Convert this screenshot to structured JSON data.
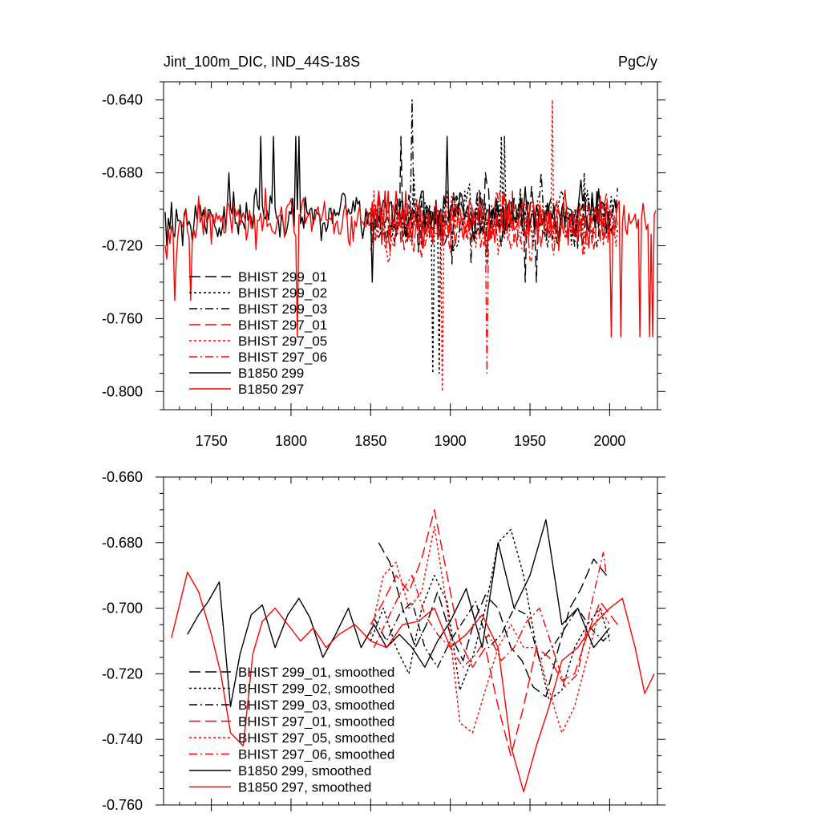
{
  "chart_data": [
    {
      "type": "line",
      "title": "Jint_100m_DIC, IND_44S-18S",
      "units": "PgC/y",
      "xlabel": "",
      "ylabel": "",
      "xlim": [
        1720,
        2030
      ],
      "ylim": [
        -0.81,
        -0.63
      ],
      "xticks": [
        1750,
        1800,
        1850,
        1900,
        1950,
        2000
      ],
      "xtick_labels": [
        "1750",
        "1800",
        "1850",
        "1900",
        "1950",
        "2000"
      ],
      "yticks": [
        -0.64,
        -0.68,
        -0.72,
        -0.76,
        -0.8
      ],
      "ytick_labels": [
        "-0.640",
        "-0.680",
        "-0.720",
        "-0.760",
        "-0.800"
      ],
      "legend_position": "bottom-left",
      "series": [
        {
          "name": "BHIST 299_01",
          "color": "#000000",
          "dash": "long-dash",
          "x_range": [
            1850,
            2005
          ],
          "mean": -0.705,
          "amp": 0.03,
          "seed": 11,
          "values_sample": [
            -0.69,
            -0.66,
            -0.7,
            -0.73,
            -0.68,
            -0.71,
            -0.74,
            -0.69,
            -0.72,
            -0.7
          ]
        },
        {
          "name": "BHIST 299_02",
          "color": "#000000",
          "dash": "dot",
          "x_range": [
            1850,
            2005
          ],
          "mean": -0.705,
          "amp": 0.03,
          "seed": 23,
          "values_sample": [
            -0.7,
            -0.68,
            -0.79,
            -0.69,
            -0.71,
            -0.66,
            -0.72,
            -0.7,
            -0.68,
            -0.71
          ]
        },
        {
          "name": "BHIST 299_03",
          "color": "#000000",
          "dash": "dash-dot",
          "x_range": [
            1850,
            2005
          ],
          "mean": -0.705,
          "amp": 0.03,
          "seed": 37,
          "values_sample": [
            -0.71,
            -0.64,
            -0.7,
            -0.69,
            -0.73,
            -0.7,
            -0.68,
            -0.71,
            -0.69,
            -0.7
          ]
        },
        {
          "name": "BHIST 297_01",
          "color": "#ff0000",
          "dash": "long-dash",
          "x_range": [
            1850,
            2005
          ],
          "mean": -0.708,
          "amp": 0.032,
          "seed": 41,
          "values_sample": [
            -0.7,
            -0.72,
            -0.68,
            -0.76,
            -0.7,
            -0.69,
            -0.78,
            -0.71,
            -0.69,
            -0.7
          ]
        },
        {
          "name": "BHIST 297_05",
          "color": "#ff0000",
          "dash": "dot",
          "x_range": [
            1850,
            2005
          ],
          "mean": -0.708,
          "amp": 0.032,
          "seed": 53,
          "values_sample": [
            -0.69,
            -0.71,
            -0.8,
            -0.7,
            -0.68,
            -0.72,
            -0.7,
            -0.64,
            -0.71,
            -0.7
          ]
        },
        {
          "name": "BHIST 297_06",
          "color": "#ff0000",
          "dash": "dash-dot",
          "x_range": [
            1850,
            2005
          ],
          "mean": -0.708,
          "amp": 0.032,
          "seed": 67,
          "values_sample": [
            -0.7,
            -0.69,
            -0.72,
            -0.7,
            -0.79,
            -0.69,
            -0.71,
            -0.7,
            -0.69,
            -0.7
          ]
        },
        {
          "name": "B1850 299",
          "color": "#000000",
          "dash": "solid",
          "x_range": [
            1721,
            2002
          ],
          "mean": -0.703,
          "amp": 0.028,
          "seed": 79,
          "values_sample": [
            -0.72,
            -0.68,
            -0.66,
            -0.7,
            -0.74,
            -0.69,
            -0.66,
            -0.7,
            -0.64,
            -0.71
          ]
        },
        {
          "name": "B1850 297",
          "color": "#ff0000",
          "dash": "solid",
          "x_range": [
            1721,
            2029
          ],
          "mean": -0.708,
          "amp": 0.03,
          "seed": 97,
          "values_sample": [
            -0.75,
            -0.69,
            -0.77,
            -0.7,
            -0.69,
            -0.72,
            -0.7,
            -0.71,
            -0.7,
            -0.77
          ]
        }
      ]
    },
    {
      "type": "line",
      "title": "",
      "xlabel": "",
      "ylabel": "",
      "xlim": [
        1720,
        2030
      ],
      "ylim": [
        -0.76,
        -0.66
      ],
      "xticks": [
        1750,
        1800,
        1850,
        1900,
        1950,
        2000
      ],
      "xtick_labels": [],
      "yticks": [
        -0.66,
        -0.68,
        -0.7,
        -0.72,
        -0.74,
        -0.76
      ],
      "ytick_labels": [
        "-0.660",
        "-0.680",
        "-0.700",
        "-0.720",
        "-0.740",
        "-0.760"
      ],
      "legend_position": "bottom-left",
      "series": [
        {
          "name": "BHIST 299_01, smoothed",
          "color": "#000000",
          "dash": "long-dash",
          "x_range": [
            1855,
            2000
          ],
          "x": [
            1855,
            1862,
            1870,
            1878,
            1885,
            1892,
            1900,
            1908,
            1915,
            1922,
            1930,
            1938,
            1945,
            1952,
            1960,
            1968,
            1975,
            1982,
            1990,
            1998
          ],
          "values": [
            -0.68,
            -0.686,
            -0.7,
            -0.712,
            -0.705,
            -0.695,
            -0.708,
            -0.716,
            -0.704,
            -0.696,
            -0.7,
            -0.712,
            -0.716,
            -0.724,
            -0.727,
            -0.712,
            -0.7,
            -0.694,
            -0.685,
            -0.69
          ]
        },
        {
          "name": "BHIST 299_02, smoothed",
          "color": "#000000",
          "dash": "dot",
          "x_range": [
            1850,
            2000
          ],
          "x": [
            1850,
            1858,
            1866,
            1874,
            1882,
            1890,
            1898,
            1906,
            1914,
            1922,
            1930,
            1938,
            1946,
            1954,
            1962,
            1970,
            1978,
            1986,
            1994,
            2000
          ],
          "values": [
            -0.71,
            -0.7,
            -0.712,
            -0.72,
            -0.7,
            -0.69,
            -0.698,
            -0.725,
            -0.715,
            -0.7,
            -0.68,
            -0.676,
            -0.69,
            -0.712,
            -0.728,
            -0.725,
            -0.712,
            -0.705,
            -0.7,
            -0.71
          ]
        },
        {
          "name": "BHIST 299_03, smoothed",
          "color": "#000000",
          "dash": "dash-dot",
          "x_range": [
            1852,
            2000
          ],
          "x": [
            1852,
            1860,
            1868,
            1876,
            1884,
            1892,
            1900,
            1908,
            1916,
            1924,
            1932,
            1940,
            1948,
            1956,
            1964,
            1972,
            1980,
            1988,
            1996,
            2000
          ],
          "values": [
            -0.703,
            -0.71,
            -0.702,
            -0.698,
            -0.712,
            -0.718,
            -0.71,
            -0.704,
            -0.698,
            -0.712,
            -0.708,
            -0.7,
            -0.702,
            -0.716,
            -0.712,
            -0.706,
            -0.7,
            -0.706,
            -0.71,
            -0.708
          ]
        },
        {
          "name": "BHIST 297_01, smoothed",
          "color": "#ff0000",
          "dash": "long-dash",
          "x_range": [
            1850,
            2005
          ],
          "x": [
            1850,
            1858,
            1866,
            1874,
            1882,
            1890,
            1898,
            1906,
            1914,
            1922,
            1930,
            1938,
            1946,
            1954,
            1962,
            1970,
            1978,
            1986,
            1994,
            2005
          ],
          "values": [
            -0.705,
            -0.698,
            -0.69,
            -0.695,
            -0.685,
            -0.67,
            -0.69,
            -0.71,
            -0.718,
            -0.712,
            -0.73,
            -0.745,
            -0.73,
            -0.712,
            -0.715,
            -0.722,
            -0.72,
            -0.708,
            -0.698,
            -0.705
          ]
        },
        {
          "name": "BHIST 297_05, smoothed",
          "color": "#ff0000",
          "dash": "dot",
          "x_range": [
            1850,
            2000
          ],
          "x": [
            1850,
            1858,
            1866,
            1874,
            1882,
            1890,
            1898,
            1906,
            1914,
            1922,
            1930,
            1938,
            1946,
            1954,
            1962,
            1970,
            1978,
            1986,
            1994,
            2000
          ],
          "values": [
            -0.708,
            -0.69,
            -0.686,
            -0.7,
            -0.695,
            -0.675,
            -0.7,
            -0.735,
            -0.738,
            -0.725,
            -0.712,
            -0.705,
            -0.712,
            -0.712,
            -0.725,
            -0.738,
            -0.73,
            -0.715,
            -0.7,
            -0.705
          ]
        },
        {
          "name": "BHIST 297_06, smoothed",
          "color": "#ff0000",
          "dash": "dash-dot",
          "x_range": [
            1852,
            1998
          ],
          "x": [
            1852,
            1860,
            1868,
            1876,
            1884,
            1892,
            1900,
            1908,
            1916,
            1924,
            1932,
            1940,
            1948,
            1956,
            1964,
            1972,
            1980,
            1988,
            1996,
            1998
          ],
          "values": [
            -0.712,
            -0.704,
            -0.696,
            -0.69,
            -0.702,
            -0.708,
            -0.712,
            -0.718,
            -0.714,
            -0.708,
            -0.716,
            -0.712,
            -0.704,
            -0.7,
            -0.712,
            -0.724,
            -0.72,
            -0.7,
            -0.683,
            -0.69
          ]
        },
        {
          "name": "B1850 299, smoothed",
          "color": "#000000",
          "dash": "solid",
          "x_range": [
            1735,
            2000
          ],
          "x": [
            1735,
            1742,
            1748,
            1755,
            1762,
            1768,
            1775,
            1782,
            1790,
            1798,
            1805,
            1812,
            1820,
            1828,
            1836,
            1844,
            1852,
            1860,
            1868,
            1876,
            1884,
            1892,
            1900,
            1910,
            1920,
            1930,
            1940,
            1950,
            1960,
            1970,
            1980,
            1990,
            2000
          ],
          "values": [
            -0.708,
            -0.702,
            -0.698,
            -0.692,
            -0.73,
            -0.714,
            -0.702,
            -0.699,
            -0.712,
            -0.702,
            -0.697,
            -0.703,
            -0.715,
            -0.708,
            -0.7,
            -0.712,
            -0.705,
            -0.712,
            -0.708,
            -0.712,
            -0.718,
            -0.71,
            -0.704,
            -0.694,
            -0.712,
            -0.68,
            -0.7,
            -0.69,
            -0.673,
            -0.705,
            -0.7,
            -0.712,
            -0.706
          ]
        },
        {
          "name": "B1850 297, smoothed",
          "color": "#ff0000",
          "dash": "solid",
          "x_range": [
            1725,
            2028
          ],
          "x": [
            1725,
            1730,
            1735,
            1742,
            1750,
            1756,
            1762,
            1770,
            1776,
            1782,
            1790,
            1798,
            1806,
            1814,
            1822,
            1830,
            1840,
            1850,
            1860,
            1870,
            1880,
            1890,
            1900,
            1910,
            1920,
            1930,
            1938,
            1946,
            1954,
            1962,
            1970,
            1980,
            1990,
            2000,
            2008,
            2016,
            2022,
            2028
          ],
          "values": [
            -0.709,
            -0.699,
            -0.689,
            -0.695,
            -0.708,
            -0.72,
            -0.738,
            -0.742,
            -0.714,
            -0.704,
            -0.7,
            -0.705,
            -0.71,
            -0.706,
            -0.712,
            -0.708,
            -0.705,
            -0.71,
            -0.712,
            -0.705,
            -0.704,
            -0.7,
            -0.712,
            -0.708,
            -0.702,
            -0.712,
            -0.742,
            -0.756,
            -0.742,
            -0.73,
            -0.716,
            -0.712,
            -0.705,
            -0.7,
            -0.697,
            -0.712,
            -0.726,
            -0.72
          ]
        }
      ]
    }
  ]
}
